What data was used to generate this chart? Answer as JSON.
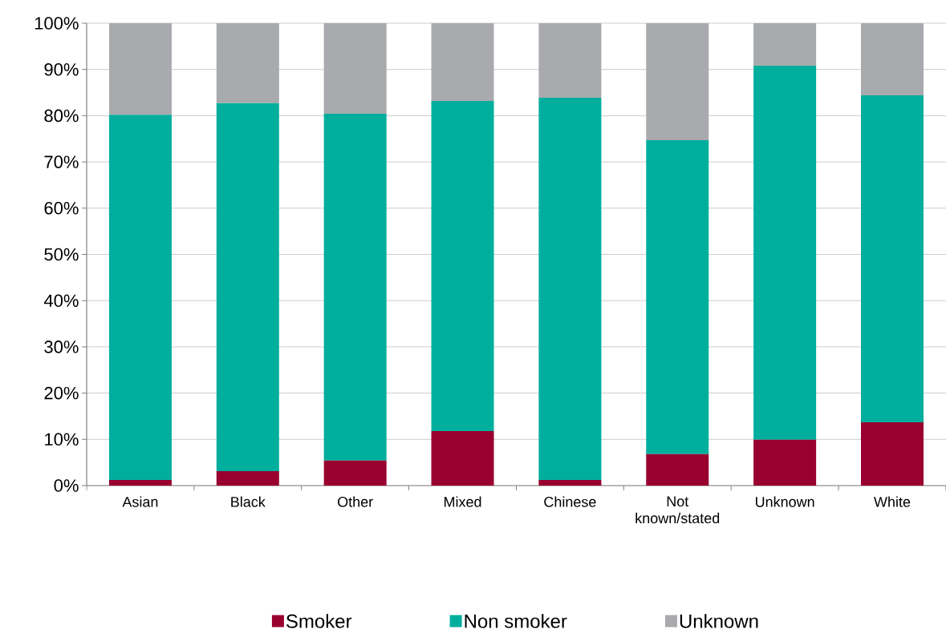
{
  "chart_data": {
    "type": "bar",
    "stacked": true,
    "categories": [
      "Asian",
      "Black",
      "Other",
      "Mixed",
      "Chinese",
      "Not known/stated",
      "Unknown",
      "White"
    ],
    "series": [
      {
        "name": "Smoker",
        "color": "#99002f",
        "values": [
          1.2,
          3.1,
          5.4,
          11.8,
          1.2,
          6.8,
          9.9,
          13.7
        ]
      },
      {
        "name": "Non smoker",
        "color": "#00ae9d",
        "values": [
          79.0,
          79.6,
          75.0,
          71.4,
          82.7,
          67.9,
          80.9,
          70.7
        ]
      },
      {
        "name": "Unknown",
        "color": "#a9aaad",
        "values": [
          19.8,
          17.3,
          19.6,
          16.8,
          16.1,
          25.3,
          9.2,
          15.6
        ]
      }
    ],
    "ylim": [
      0,
      100
    ],
    "yticks": [
      {
        "value": 0,
        "label": "0%"
      },
      {
        "value": 10,
        "label": "10%"
      },
      {
        "value": 20,
        "label": "20%"
      },
      {
        "value": 30,
        "label": "30%"
      },
      {
        "value": 40,
        "label": "40%"
      },
      {
        "value": 50,
        "label": "50%"
      },
      {
        "value": 60,
        "label": "60%"
      },
      {
        "value": 70,
        "label": "70%"
      },
      {
        "value": 80,
        "label": "80%"
      },
      {
        "value": 90,
        "label": "90%"
      },
      {
        "value": 100,
        "label": "100%"
      }
    ],
    "grid": "y",
    "legend": "bottom"
  }
}
